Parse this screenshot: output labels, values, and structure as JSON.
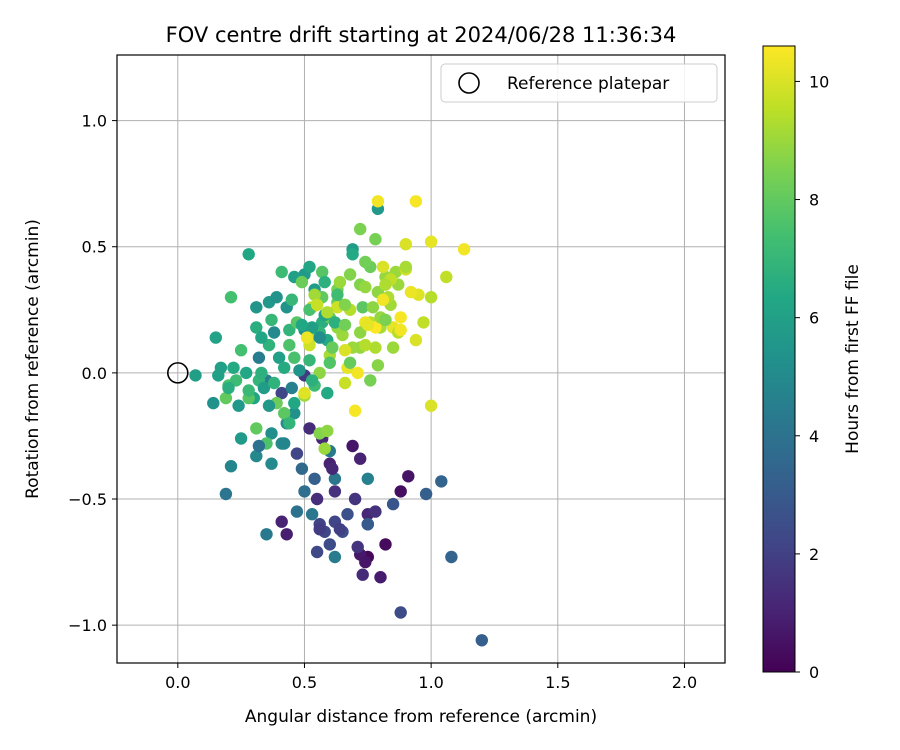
{
  "chart_data": {
    "type": "scatter",
    "title": "FOV centre drift starting at 2024/06/28 11:36:34",
    "xlabel": "Angular distance from reference (arcmin)",
    "ylabel": "Rotation from reference (arcmin)",
    "xlim": [
      -0.24,
      2.16
    ],
    "ylim": [
      -1.15,
      1.26
    ],
    "xticks": [
      0.0,
      0.5,
      1.0,
      1.5,
      2.0
    ],
    "xtick_labels": [
      "0.0",
      "0.5",
      "1.0",
      "1.5",
      "2.0"
    ],
    "yticks": [
      -1.0,
      -0.5,
      0.0,
      0.5,
      1.0
    ],
    "ytick_labels": [
      "−1.0",
      "−0.5",
      "0.0",
      "0.5",
      "1.0"
    ],
    "grid": true,
    "legend": {
      "placement": "top-right",
      "entries": [
        "Reference platepar"
      ]
    },
    "reference_point": {
      "x": 0.0,
      "y": 0.0,
      "marker": "open-circle",
      "color": "#000000"
    },
    "colorbar": {
      "label": "Hours from first FF file",
      "range": [
        0,
        10.6
      ],
      "ticks": [
        0,
        2,
        4,
        6,
        8,
        10
      ],
      "tick_labels": [
        "0",
        "2",
        "4",
        "6",
        "8",
        "10"
      ],
      "colormap": "viridis"
    },
    "points": [
      [
        0.75,
        -0.73,
        0.2
      ],
      [
        0.82,
        -0.68,
        0.3
      ],
      [
        0.88,
        -0.47,
        0.4
      ],
      [
        0.69,
        -0.29,
        0.6
      ],
      [
        0.8,
        -0.81,
        0.8
      ],
      [
        0.91,
        -0.41,
        0.6
      ],
      [
        0.75,
        -0.56,
        1.2
      ],
      [
        0.72,
        -0.34,
        1.0
      ],
      [
        0.72,
        -0.72,
        0.7
      ],
      [
        0.43,
        -0.64,
        0.9
      ],
      [
        0.6,
        -0.36,
        1.0
      ],
      [
        0.57,
        -0.26,
        1.2
      ],
      [
        0.41,
        -0.59,
        1.0
      ],
      [
        0.55,
        -0.5,
        1.4
      ],
      [
        0.7,
        -0.5,
        1.6
      ],
      [
        0.73,
        -0.8,
        1.3
      ],
      [
        0.62,
        -0.47,
        1.5
      ],
      [
        0.75,
        -0.6,
        1.8
      ],
      [
        0.52,
        -0.22,
        1.3
      ],
      [
        0.5,
        -0.01,
        1.8
      ],
      [
        0.41,
        -0.08,
        2.2
      ],
      [
        0.47,
        -0.32,
        2.2
      ],
      [
        0.56,
        -0.6,
        2.1
      ],
      [
        0.58,
        -0.63,
        2.3
      ],
      [
        0.6,
        -0.68,
        2.4
      ],
      [
        0.55,
        -0.71,
        2.3
      ],
      [
        0.62,
        -0.59,
        2.2
      ],
      [
        0.67,
        -0.56,
        2.6
      ],
      [
        0.65,
        -0.63,
        2.5
      ],
      [
        0.88,
        -0.95,
        2.4
      ],
      [
        0.98,
        -0.48,
        3.2
      ],
      [
        1.04,
        -0.43,
        3.4
      ],
      [
        1.08,
        -0.73,
        3.4
      ],
      [
        1.2,
        -1.06,
        3.2
      ],
      [
        0.85,
        -0.52,
        2.8
      ],
      [
        0.75,
        -0.6,
        3.0
      ],
      [
        0.54,
        -0.42,
        3.2
      ],
      [
        0.49,
        -0.38,
        3.6
      ],
      [
        0.5,
        -0.47,
        3.8
      ],
      [
        0.62,
        -0.42,
        4.2
      ],
      [
        0.6,
        -0.31,
        4.3
      ],
      [
        0.47,
        -0.55,
        4.0
      ],
      [
        0.53,
        -0.56,
        4.2
      ],
      [
        0.62,
        -0.73,
        4.4
      ],
      [
        0.75,
        -0.42,
        4.6
      ],
      [
        0.35,
        -0.64,
        4.3
      ],
      [
        0.19,
        -0.48,
        4.1
      ],
      [
        0.21,
        -0.37,
        4.8
      ],
      [
        0.31,
        -0.33,
        4.9
      ],
      [
        0.37,
        -0.36,
        5.0
      ],
      [
        0.41,
        -0.28,
        5.0
      ],
      [
        0.43,
        -0.2,
        5.1
      ],
      [
        0.46,
        -0.16,
        5.3
      ],
      [
        0.37,
        -0.24,
        5.2
      ],
      [
        0.35,
        -0.03,
        4.5
      ],
      [
        0.32,
        0.06,
        4.4
      ],
      [
        0.38,
        0.16,
        5.0
      ],
      [
        0.43,
        0.26,
        5.4
      ],
      [
        0.5,
        0.39,
        5.7
      ],
      [
        0.54,
        0.33,
        5.8
      ],
      [
        0.31,
        0.26,
        5.5
      ],
      [
        0.36,
        0.28,
        5.6
      ],
      [
        0.39,
        0.3,
        5.4
      ],
      [
        0.46,
        0.38,
        6.0
      ],
      [
        0.52,
        0.42,
        6.2
      ],
      [
        0.69,
        0.49,
        5.8
      ],
      [
        0.79,
        0.65,
        5.6
      ],
      [
        0.69,
        0.47,
        6.4
      ],
      [
        0.28,
        0.47,
        6.3
      ],
      [
        0.15,
        0.14,
        6.1
      ],
      [
        0.14,
        -0.12,
        5.3
      ],
      [
        0.24,
        -0.13,
        5.6
      ],
      [
        0.3,
        -0.1,
        6.2
      ],
      [
        0.25,
        -0.26,
        5.7
      ],
      [
        0.07,
        -0.01,
        5.9
      ],
      [
        0.16,
        -0.01,
        6.0
      ],
      [
        0.22,
        0.02,
        6.4
      ],
      [
        0.31,
        0.18,
        6.6
      ],
      [
        0.36,
        0.11,
        6.8
      ],
      [
        0.44,
        0.17,
        6.9
      ],
      [
        0.52,
        0.05,
        7.0
      ],
      [
        0.57,
        0.2,
        6.6
      ],
      [
        0.59,
        0.13,
        6.4
      ],
      [
        0.45,
        0.29,
        7.0
      ],
      [
        0.41,
        0.4,
        7.2
      ],
      [
        0.21,
        0.3,
        7.4
      ],
      [
        0.25,
        0.09,
        7.4
      ],
      [
        0.2,
        -0.05,
        7.6
      ],
      [
        0.19,
        -0.1,
        8.0
      ],
      [
        0.28,
        -0.1,
        7.8
      ],
      [
        0.31,
        -0.22,
        8.0
      ],
      [
        0.35,
        -0.28,
        7.6
      ],
      [
        0.39,
        -0.12,
        8.2
      ],
      [
        0.42,
        -0.16,
        7.9
      ],
      [
        0.44,
        0.11,
        7.6
      ],
      [
        0.47,
        0.2,
        7.8
      ],
      [
        0.49,
        0.36,
        8.2
      ],
      [
        0.57,
        0.4,
        7.8
      ],
      [
        0.57,
        0.3,
        8.0
      ],
      [
        0.6,
        0.22,
        8.0
      ],
      [
        0.63,
        0.28,
        8.2
      ],
      [
        0.63,
        0.33,
        8.4
      ],
      [
        0.68,
        0.39,
        8.6
      ],
      [
        0.72,
        0.57,
        8.5
      ],
      [
        0.78,
        0.53,
        8.4
      ],
      [
        0.76,
        0.42,
        8.2
      ],
      [
        0.72,
        0.35,
        8.6
      ],
      [
        0.79,
        0.32,
        8.8
      ],
      [
        0.82,
        0.38,
        8.9
      ],
      [
        0.87,
        0.35,
        9.0
      ],
      [
        0.86,
        0.4,
        9.0
      ],
      [
        0.84,
        0.27,
        9.1
      ],
      [
        0.8,
        0.18,
        9.2
      ],
      [
        0.78,
        0.1,
        9.3
      ],
      [
        0.79,
        0.03,
        8.7
      ],
      [
        0.76,
        -0.03,
        8.4
      ],
      [
        0.72,
        0.1,
        8.9
      ],
      [
        0.69,
        0.1,
        9.0
      ],
      [
        0.65,
        0.15,
        9.0
      ],
      [
        0.6,
        0.07,
        9.2
      ],
      [
        0.56,
        0.0,
        8.8
      ],
      [
        0.56,
        -0.24,
        8.6
      ],
      [
        0.58,
        -0.3,
        9.0
      ],
      [
        0.59,
        -0.23,
        8.8
      ],
      [
        0.5,
        -0.09,
        9.1
      ],
      [
        0.52,
        0.14,
        9.4
      ],
      [
        0.53,
        0.26,
        9.6
      ],
      [
        0.63,
        0.26,
        9.8
      ],
      [
        0.68,
        0.25,
        9.4
      ],
      [
        0.76,
        0.2,
        9.5
      ],
      [
        0.84,
        0.37,
        9.6
      ],
      [
        0.9,
        0.41,
        9.8
      ],
      [
        0.9,
        0.51,
        10.0
      ],
      [
        0.95,
        0.31,
        10.1
      ],
      [
        0.97,
        0.2,
        9.6
      ],
      [
        1.0,
        0.3,
        9.4
      ],
      [
        1.06,
        0.38,
        9.6
      ],
      [
        1.0,
        0.52,
        10.2
      ],
      [
        1.13,
        0.49,
        10.4
      ],
      [
        0.94,
        0.68,
        10.5
      ],
      [
        0.79,
        0.68,
        10.4
      ],
      [
        0.92,
        0.32,
        10.3
      ],
      [
        0.88,
        0.22,
        10.5
      ],
      [
        0.85,
        0.18,
        10.2
      ],
      [
        0.94,
        0.13,
        10.0
      ],
      [
        0.78,
        0.18,
        10.6
      ],
      [
        0.74,
        0.2,
        10.3
      ],
      [
        0.71,
        0.0,
        10.4
      ],
      [
        0.67,
        0.02,
        10.2
      ],
      [
        0.66,
        0.09,
        10.0
      ],
      [
        0.7,
        -0.15,
        10.5
      ],
      [
        0.66,
        -0.04,
        9.7
      ],
      [
        1.0,
        -0.13,
        10.0
      ],
      [
        0.5,
        -0.08,
        10.1
      ],
      [
        0.54,
        0.31,
        9.1
      ],
      [
        0.9,
        0.42,
        9.2
      ],
      [
        0.83,
        0.3,
        9.3
      ],
      [
        0.63,
        0.18,
        8.9
      ],
      [
        0.74,
        0.44,
        8.3
      ],
      [
        0.59,
        -0.08,
        6.4
      ],
      [
        0.56,
        0.16,
        6.9
      ],
      [
        0.54,
        -0.05,
        7.2
      ],
      [
        0.46,
        0.06,
        7.5
      ],
      [
        0.32,
        -0.03,
        6.9
      ],
      [
        0.27,
        0.0,
        6.3
      ],
      [
        0.28,
        -0.07,
        7.1
      ],
      [
        0.23,
        -0.03,
        7.2
      ],
      [
        0.2,
        -0.06,
        6.6
      ],
      [
        0.17,
        0.02,
        6.0
      ],
      [
        0.33,
        0.0,
        6.7
      ],
      [
        0.4,
        0.06,
        6.0
      ],
      [
        0.42,
        0.02,
        6.5
      ],
      [
        0.5,
        0.17,
        5.3
      ],
      [
        0.53,
        0.18,
        5.9
      ],
      [
        0.56,
        0.14,
        5.1
      ],
      [
        0.58,
        0.23,
        6.1
      ],
      [
        0.62,
        0.2,
        6.7
      ],
      [
        0.63,
        0.31,
        7.3
      ],
      [
        0.58,
        0.36,
        6.7
      ],
      [
        0.52,
        0.25,
        7.5
      ],
      [
        0.37,
        0.21,
        7.0
      ],
      [
        0.33,
        0.14,
        6.2
      ],
      [
        0.34,
        -0.06,
        5.8
      ],
      [
        0.46,
        -0.12,
        6.3
      ],
      [
        0.44,
        -0.2,
        6.9
      ],
      [
        0.53,
        -0.03,
        6.7
      ],
      [
        0.6,
        0.04,
        7.7
      ],
      [
        0.61,
        0.1,
        8.1
      ],
      [
        0.66,
        0.19,
        8.3
      ],
      [
        0.68,
        0.04,
        8.1
      ],
      [
        0.72,
        0.16,
        8.8
      ],
      [
        0.66,
        0.27,
        8.6
      ],
      [
        0.73,
        0.26,
        7.9
      ],
      [
        0.77,
        0.26,
        8.8
      ],
      [
        0.8,
        0.22,
        8.9
      ],
      [
        0.82,
        0.35,
        9.3
      ],
      [
        0.85,
        0.1,
        9.0
      ],
      [
        0.87,
        0.16,
        9.5
      ],
      [
        0.64,
        0.36,
        9.0
      ],
      [
        0.59,
        0.24,
        9.3
      ],
      [
        0.55,
        0.27,
        9.7
      ],
      [
        0.52,
        0.11,
        9.8
      ],
      [
        0.51,
        0.14,
        10.3
      ],
      [
        0.81,
        0.42,
        10.0
      ],
      [
        0.88,
        0.17,
        10.4
      ],
      [
        0.75,
        0.19,
        10.2
      ],
      [
        0.81,
        0.29,
        10.4
      ],
      [
        0.74,
        0.34,
        8.9
      ],
      [
        0.82,
        0.21,
        8.5
      ],
      [
        0.74,
        0.11,
        9.4
      ],
      [
        0.49,
        0.19,
        6.3
      ],
      [
        0.45,
        -0.06,
        4.6
      ],
      [
        0.42,
        -0.28,
        4.8
      ],
      [
        0.32,
        -0.29,
        4.0
      ],
      [
        0.36,
        -0.13,
        5.6
      ],
      [
        0.38,
        -0.04,
        6.8
      ],
      [
        0.48,
        0.01,
        5.5
      ],
      [
        0.61,
        -0.38,
        1.2
      ],
      [
        0.56,
        -0.62,
        1.9
      ],
      [
        0.64,
        -0.62,
        2.0
      ],
      [
        0.71,
        -0.69,
        1.6
      ],
      [
        0.78,
        -0.55,
        1.5
      ],
      [
        0.74,
        -0.75,
        0.6
      ]
    ]
  }
}
